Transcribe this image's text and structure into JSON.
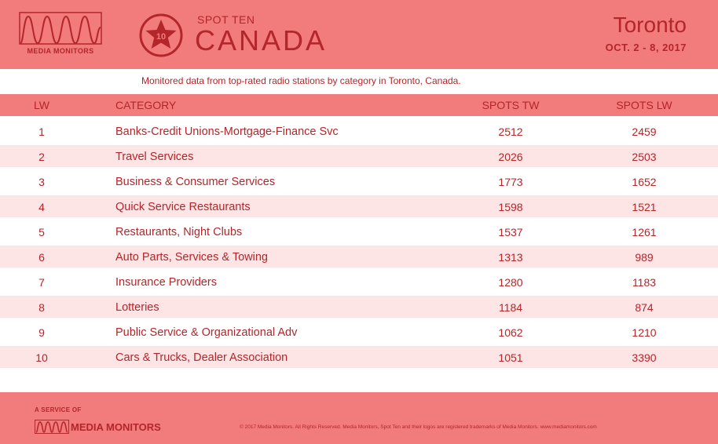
{
  "header": {
    "logo_text": "MEDIA MONITORS",
    "badge_number": "10",
    "spot_ten": "SPOT TEN",
    "country": "CANADA",
    "city": "Toronto",
    "dates": "OCT. 2 - 8, 2017"
  },
  "subtitle": "Monitored data from top-rated radio stations by category in Toronto, Canada.",
  "table": {
    "headers": {
      "lw": "LW",
      "category": "CATEGORY",
      "spots_tw": "SPOTS TW",
      "spots_lw": "SPOTS LW"
    },
    "rows": [
      {
        "lw": "1",
        "category": "Banks-Credit Unions-Mortgage-Finance Svc",
        "spots_tw": "2512",
        "spots_lw": "2459"
      },
      {
        "lw": "2",
        "category": "Travel Services",
        "spots_tw": "2026",
        "spots_lw": "2503"
      },
      {
        "lw": "3",
        "category": "Business & Consumer Services",
        "spots_tw": "1773",
        "spots_lw": "1652"
      },
      {
        "lw": "4",
        "category": "Quick Service Restaurants",
        "spots_tw": "1598",
        "spots_lw": "1521"
      },
      {
        "lw": "5",
        "category": "Restaurants, Night Clubs",
        "spots_tw": "1537",
        "spots_lw": "1261"
      },
      {
        "lw": "6",
        "category": "Auto Parts, Services & Towing",
        "spots_tw": "1313",
        "spots_lw": "989"
      },
      {
        "lw": "7",
        "category": "Insurance Providers",
        "spots_tw": "1280",
        "spots_lw": "1183"
      },
      {
        "lw": "8",
        "category": "Lotteries",
        "spots_tw": "1184",
        "spots_lw": "874"
      },
      {
        "lw": "9",
        "category": "Public Service & Organizational Adv",
        "spots_tw": "1062",
        "spots_lw": "1210"
      },
      {
        "lw": "10",
        "category": "Cars & Trucks, Dealer Association",
        "spots_tw": "1051",
        "spots_lw": "3390"
      }
    ]
  },
  "footer": {
    "service": "A SERVICE OF",
    "brand": "MEDIA MONITORS",
    "copyright": "© 2017 Media Monitors.  All Rights Reserved. Media Monitors, Spot Ten and their logos are registered trademarks of Media Monitors. www.mediamonitors.com"
  },
  "colors": {
    "brand": "#f27b7b",
    "text": "#b3262a",
    "row_alt": "#fde5e5"
  }
}
